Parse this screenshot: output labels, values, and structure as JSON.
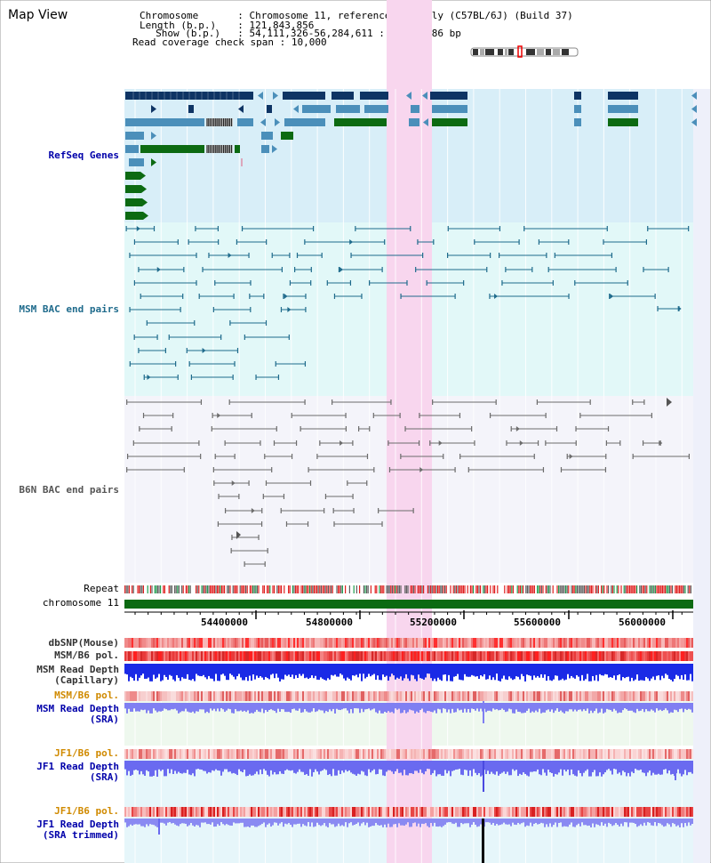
{
  "title": "Map View",
  "info": {
    "chromosome_label": "Chromosome",
    "chromosome_value": "Chromosome 11, reference assembly (C57BL/6J) (Build 37)",
    "length_label": "Length (b.p.)",
    "length_value": "121,843,856",
    "show_label": "Show (b.p.)",
    "show_value": "54,111,326-56,284,611 : 2,173,286 bp",
    "span_label": "Read coverage check span",
    "span_value": "10,000"
  },
  "tracks": {
    "refseq": "RefSeq Genes",
    "msm_bac": "MSM BAC end pairs",
    "b6n_bac": "B6N BAC end pairs",
    "repeat": "Repeat",
    "chromosome": "chromosome 11",
    "dbsnp": "dbSNP(Mouse)",
    "msm_pol1": "MSM/B6 pol.",
    "msm_depth_cap_1": "MSM Read Depth",
    "msm_depth_cap_2": "(Capillary)",
    "msm_pol2": "MSM/B6 pol.",
    "msm_depth_sra_1": "MSM Read Depth",
    "msm_depth_sra_2": "(SRA)",
    "jf1_pol1": "JF1/B6 pol.",
    "jf1_depth_1": "JF1 Read Depth",
    "jf1_depth_2": "(SRA)",
    "jf1_pol2": "JF1/B6 pol.",
    "jf1_depth_trim_1": "JF1 Read Depth",
    "jf1_depth_trim_2": "(SRA trimmed)"
  },
  "axis": {
    "ticks": [
      "54400000",
      "54800000",
      "55200000",
      "55600000",
      "56000000"
    ]
  },
  "colors": {
    "refseq_bg": "#d8eef8",
    "msm_bg": "#e2f8f8",
    "b6n_bg": "#f4f4fa",
    "highlight": "#f8d6ee",
    "dark_blue": "#0e3464",
    "mid_blue": "#4b8fba",
    "gene_green": "#0c6a12",
    "msm_line": "#1f6b8c",
    "b6n_line": "#6c6c6c",
    "depth_blue": "#1a2ae6",
    "depth_light": "#7f7ff2",
    "label_blue": "#0000aa",
    "label_teal": "#1f6b8c",
    "label_orange": "#d08a00"
  }
}
